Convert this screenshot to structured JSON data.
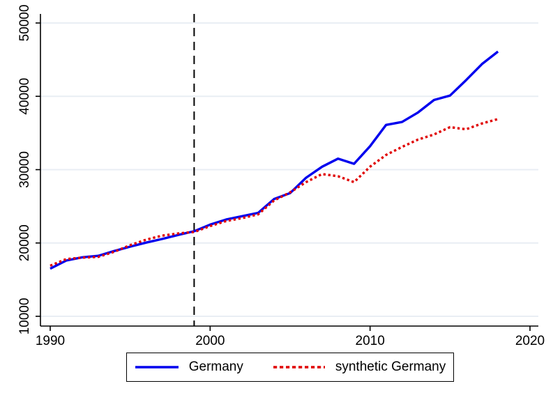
{
  "chart_data": {
    "type": "line",
    "title": "",
    "xlabel": "",
    "ylabel": "",
    "x": [
      1990,
      1991,
      1992,
      1993,
      1994,
      1995,
      1996,
      1997,
      1998,
      1999,
      2000,
      2001,
      2002,
      2003,
      2004,
      2005,
      2006,
      2007,
      2008,
      2009,
      2010,
      2011,
      2012,
      2013,
      2014,
      2015,
      2016,
      2017,
      2018
    ],
    "series": [
      {
        "name": "Germany",
        "style": "solid",
        "color": "#0000ee",
        "values": [
          16500,
          17600,
          18050,
          18250,
          18900,
          19500,
          20050,
          20550,
          21100,
          21600,
          22500,
          23200,
          23650,
          24100,
          26000,
          26800,
          28900,
          30400,
          31500,
          30800,
          33200,
          36100,
          36500,
          37800,
          39500,
          40100,
          42200,
          44400,
          46100
        ]
      },
      {
        "name": "synthetic Germany",
        "style": "dotted",
        "color": "#e00000",
        "values": [
          16900,
          17800,
          18000,
          18100,
          18800,
          19700,
          20450,
          21000,
          21300,
          21500,
          22300,
          23000,
          23400,
          23900,
          25800,
          26900,
          28300,
          29400,
          29100,
          28300,
          30400,
          32000,
          33100,
          34100,
          34800,
          35800,
          35500,
          36300,
          36900
        ]
      }
    ],
    "xticks": [
      1990,
      2000,
      2010,
      2020
    ],
    "yticks": [
      10000,
      20000,
      30000,
      40000,
      50000
    ],
    "xlim": [
      1989.4,
      2020.5
    ],
    "ylim": [
      8700,
      51200
    ],
    "grid": "horizontal",
    "gridline_color": "#e9eef4",
    "axis_color": "#000000",
    "treatment_line": {
      "x": 1999,
      "style": "dashed",
      "color": "#000000"
    },
    "legend_position": "bottom-center"
  },
  "legend": {
    "items": [
      {
        "label": "Germany"
      },
      {
        "label": "synthetic Germany"
      }
    ]
  }
}
